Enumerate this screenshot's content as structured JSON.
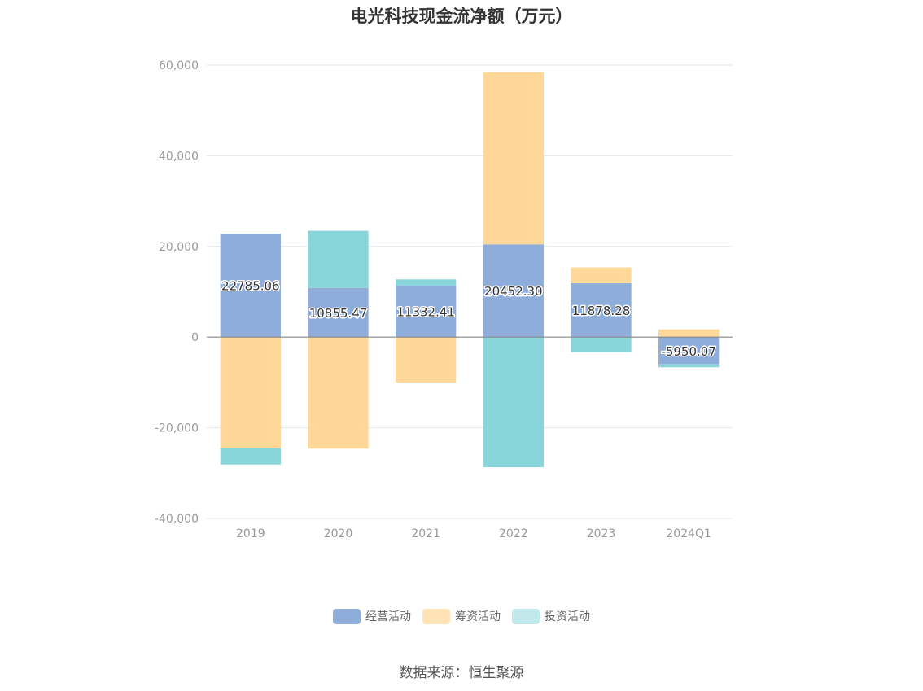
{
  "chart_data": {
    "type": "bar",
    "stacked": true,
    "title": "电光科技现金流净额（万元）",
    "categories": [
      "2019",
      "2020",
      "2021",
      "2022",
      "2023",
      "2024Q1"
    ],
    "series": [
      {
        "name": "经营活动",
        "color": "#8eaddb",
        "values": [
          22785.06,
          10855.47,
          11332.41,
          20452.3,
          11878.28,
          -5950.07
        ]
      },
      {
        "name": "筹资活动",
        "color": "#ffd899",
        "values": [
          -24500,
          -24600,
          -10000,
          38000,
          3500,
          1700
        ]
      },
      {
        "name": "投资活动",
        "color": "#88d6da",
        "values": [
          -3600,
          12600,
          1400,
          -28700,
          -3300,
          -700
        ]
      }
    ],
    "data_labels": [
      "22785.06",
      "10855.47",
      "11332.41",
      "20452.30",
      "11878.28",
      "-5950.07"
    ],
    "ylim": [
      -40000,
      60000
    ],
    "yticks": [
      60000,
      40000,
      20000,
      0,
      -20000,
      -40000
    ],
    "ytick_labels": [
      "60,000",
      "40,000",
      "20,000",
      "0",
      "-20,000",
      "-40,000"
    ],
    "grid": true,
    "legend_position": "bottom",
    "legend_colors": [
      "#8eaddb",
      "#ffe3b6",
      "#c1e9ec"
    ]
  },
  "source": "数据来源：恒生聚源"
}
